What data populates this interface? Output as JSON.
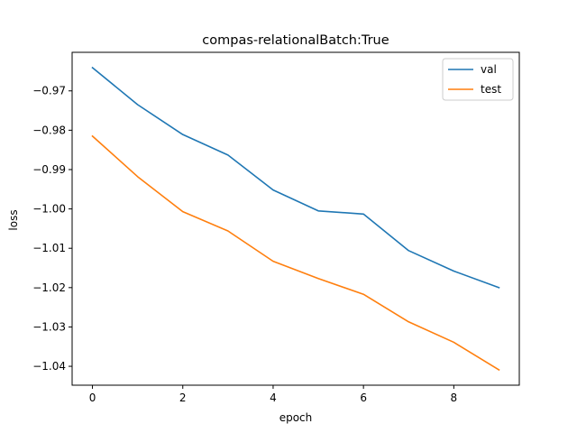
{
  "chart_data": {
    "type": "line",
    "title": "compas-relationalBatch:True",
    "xlabel": "epoch",
    "ylabel": "loss",
    "x": [
      0,
      1,
      2,
      3,
      4,
      5,
      6,
      7,
      8,
      9
    ],
    "xlim": [
      -0.45,
      9.45
    ],
    "ylim": [
      -1.0448,
      -0.9602
    ],
    "xticks": [
      0,
      2,
      4,
      6,
      8
    ],
    "xtick_labels": [
      "0",
      "2",
      "4",
      "6",
      "8"
    ],
    "yticks": [
      -0.97,
      -0.98,
      -0.99,
      -1.0,
      -1.01,
      -1.02,
      -1.03,
      -1.04
    ],
    "ytick_labels": [
      "−0.97",
      "−0.98",
      "−0.99",
      "−1.00",
      "−1.01",
      "−1.02",
      "−1.03",
      "−1.04"
    ],
    "grid": false,
    "legend_position": "top-right",
    "series": [
      {
        "name": "val",
        "color": "#1f77b4",
        "values": [
          -0.9641,
          -0.9735,
          -0.9811,
          -0.9863,
          -0.9952,
          -1.0005,
          -1.0013,
          -1.0106,
          -1.0158,
          -1.02
        ]
      },
      {
        "name": "test",
        "color": "#ff7f0e",
        "values": [
          -0.9815,
          -0.9918,
          -1.0007,
          -1.0056,
          -1.0133,
          -1.0177,
          -1.0217,
          -1.0287,
          -1.0339,
          -1.0409
        ]
      }
    ]
  }
}
